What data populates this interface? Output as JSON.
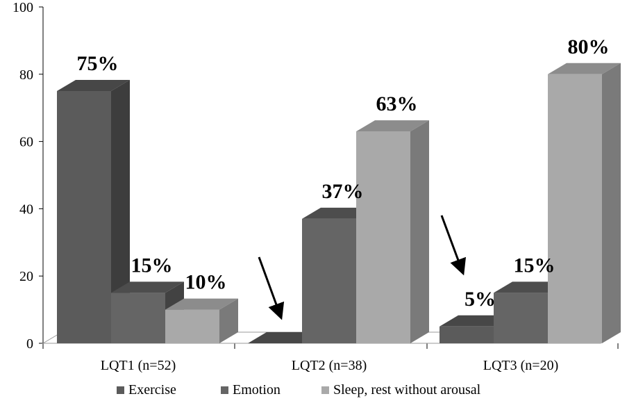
{
  "chart_data": {
    "type": "bar",
    "style": "3d-clustered-column",
    "categories": [
      "LQT1 (n=52)",
      "LQT2 (n=38)",
      "LQT3 (n=20)"
    ],
    "series": [
      {
        "name": "Exercise",
        "values": [
          75,
          0,
          5
        ],
        "labels": [
          "75%",
          "",
          "5%"
        ],
        "color": "#5b5b5b"
      },
      {
        "name": "Emotion",
        "values": [
          15,
          37,
          15
        ],
        "labels": [
          "15%",
          "37%",
          "15%"
        ],
        "color": "#656565"
      },
      {
        "name": "Sleep, rest without arousal",
        "values": [
          10,
          63,
          80
        ],
        "labels": [
          "10%",
          "63%",
          "80%"
        ],
        "color": "#a9a9a9"
      }
    ],
    "ylim": [
      0,
      100
    ],
    "yticks": [
      0,
      20,
      40,
      60,
      80,
      100
    ],
    "ytick_labels": [
      "0",
      "20",
      "40",
      "60",
      "80",
      "100"
    ],
    "title": "",
    "xlabel": "",
    "ylabel": "",
    "legend_position": "bottom",
    "annotations": [
      {
        "type": "arrow",
        "target_category": "LQT2 (n=38)",
        "target_series": "Exercise"
      },
      {
        "type": "arrow",
        "target_category": "LQT3 (n=20)",
        "target_series": "Exercise"
      }
    ]
  }
}
